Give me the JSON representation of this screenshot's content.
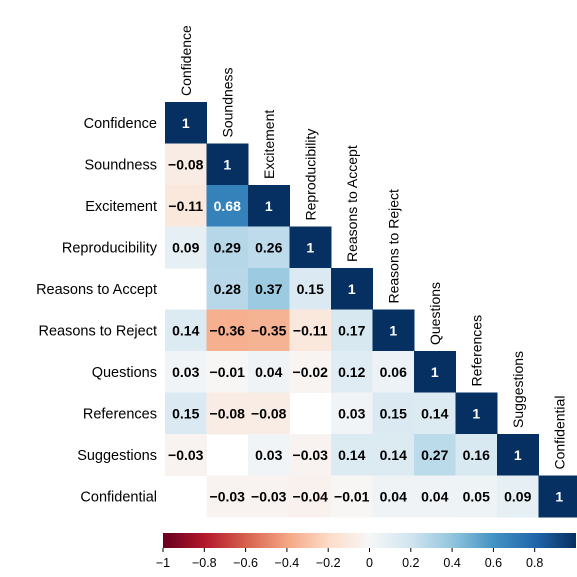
{
  "chart_data": {
    "type": "heatmap",
    "variables": [
      "Confidence",
      "Soundness",
      "Excitement",
      "Reproducibility",
      "Reasons to Accept",
      "Reasons to Reject",
      "Questions",
      "References",
      "Suggestions",
      "Confidential"
    ],
    "matrix": [
      [
        1,
        null,
        null,
        null,
        null,
        null,
        null,
        null,
        null,
        null
      ],
      [
        -0.08,
        1,
        null,
        null,
        null,
        null,
        null,
        null,
        null,
        null
      ],
      [
        -0.11,
        0.68,
        1,
        null,
        null,
        null,
        null,
        null,
        null,
        null
      ],
      [
        0.09,
        0.29,
        0.26,
        1,
        null,
        null,
        null,
        null,
        null,
        null
      ],
      [
        null,
        0.28,
        0.37,
        0.15,
        1,
        null,
        null,
        null,
        null,
        null
      ],
      [
        0.14,
        -0.36,
        -0.35,
        -0.11,
        0.17,
        1,
        null,
        null,
        null,
        null
      ],
      [
        0.03,
        -0.01,
        0.04,
        -0.02,
        0.12,
        0.06,
        1,
        null,
        null,
        null
      ],
      [
        0.15,
        -0.08,
        -0.08,
        null,
        0.03,
        0.15,
        0.14,
        1,
        null,
        null
      ],
      [
        -0.03,
        null,
        0.03,
        -0.03,
        0.14,
        0.14,
        0.27,
        0.16,
        1,
        null
      ],
      [
        null,
        -0.03,
        -0.03,
        -0.04,
        -0.01,
        0.04,
        0.04,
        0.05,
        0.09,
        1
      ]
    ],
    "colorbar": {
      "range": [
        -1,
        1
      ],
      "ticks": [
        -1,
        -0.8,
        -0.6,
        -0.4,
        -0.2,
        0,
        0.2,
        0.4,
        0.6,
        0.8
      ],
      "tick_labels": [
        "−1",
        "−0.8",
        "−0.6",
        "−0.4",
        "−0.2",
        "0",
        "0.2",
        "0.4",
        "0.6",
        "0.8"
      ],
      "colormap": "RdBu"
    },
    "layout": "lower-triangle"
  }
}
